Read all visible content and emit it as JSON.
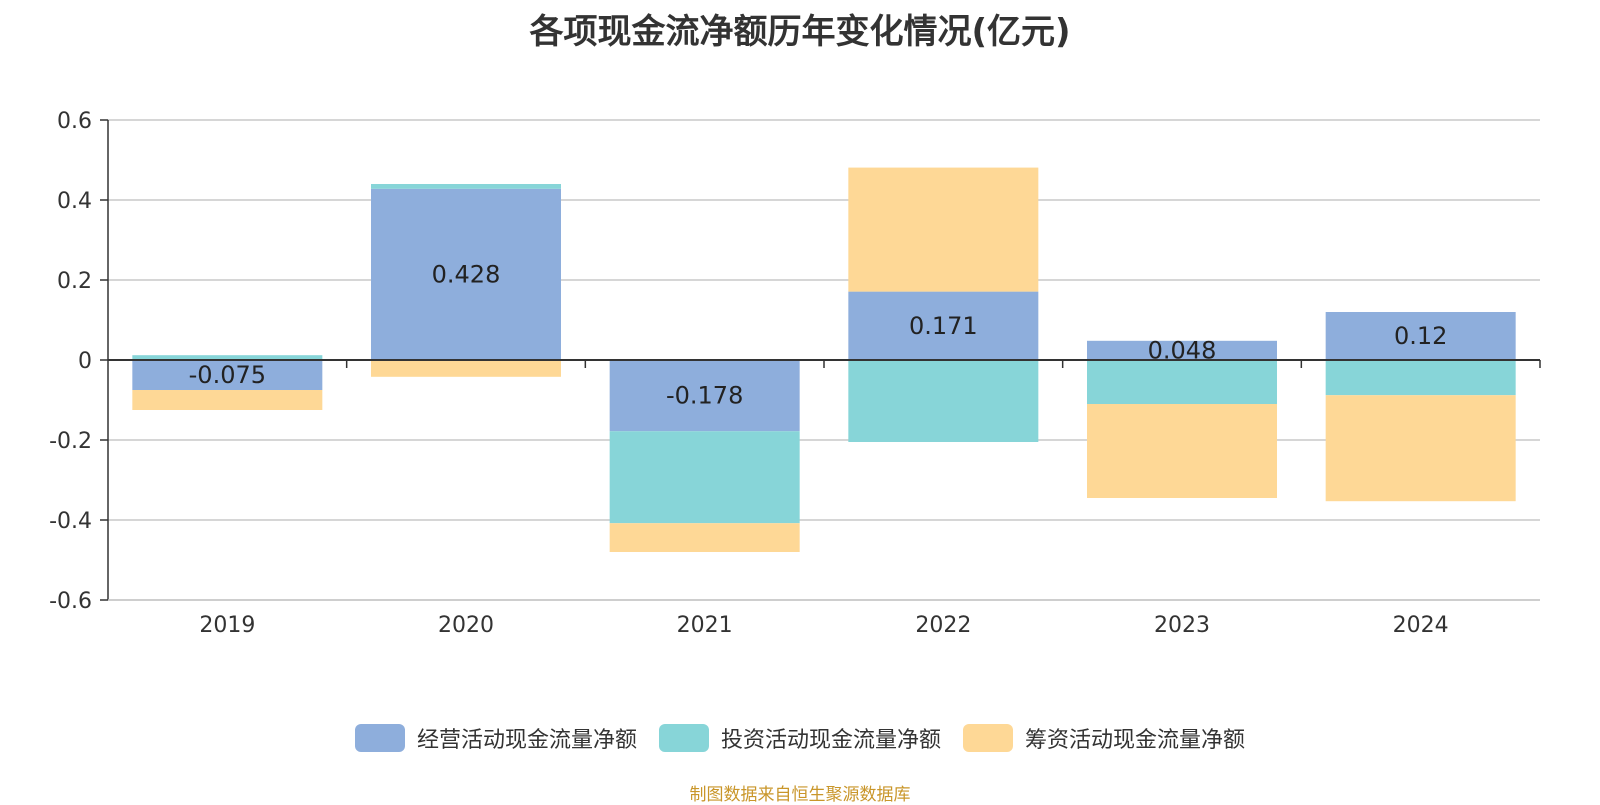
{
  "chart_data": {
    "type": "bar",
    "stacked": true,
    "title": "各项现金流净额历年变化情况(亿元)",
    "categories": [
      "2019",
      "2020",
      "2021",
      "2022",
      "2023",
      "2024"
    ],
    "series": [
      {
        "name": "经营活动现金流量净额",
        "color": "#8eaedc",
        "values": [
          -0.075,
          0.428,
          -0.178,
          0.171,
          0.048,
          0.12
        ],
        "labels": [
          "-0.075",
          "0.428",
          "-0.178",
          "0.171",
          "0.048",
          "0.12"
        ]
      },
      {
        "name": "投资活动现金流量净额",
        "color": "#87d5d8",
        "values": [
          0.012,
          0.012,
          -0.23,
          -0.205,
          -0.11,
          -0.088
        ]
      },
      {
        "name": "筹资活动现金流量净额",
        "color": "#fed896",
        "values": [
          -0.05,
          -0.042,
          -0.072,
          0.31,
          -0.235,
          -0.265
        ]
      }
    ],
    "ylim": [
      -0.6,
      0.6
    ],
    "yticks": [
      -0.6,
      -0.4,
      -0.2,
      0,
      0.2,
      0.4,
      0.6
    ],
    "ytick_labels": [
      "-0.6",
      "-0.4",
      "-0.2",
      "0",
      "0.2",
      "0.4",
      "0.6"
    ],
    "grid": true,
    "legend": "bottom-center"
  },
  "source": "制图数据来自恒生聚源数据库"
}
